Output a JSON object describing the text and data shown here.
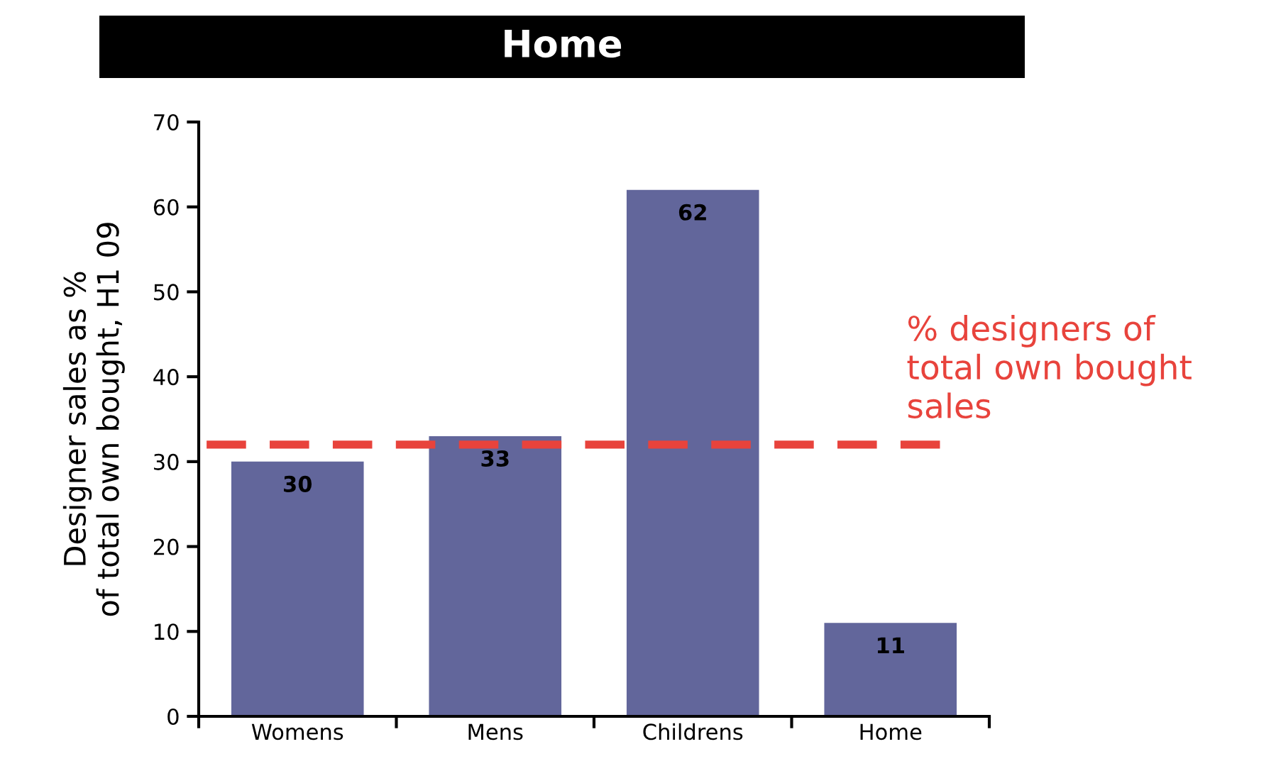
{
  "chart_data": {
    "type": "bar",
    "title": "Home",
    "ylabel": "Designer sales as %\nof total own bought, H1 09",
    "categories": [
      "Womens",
      "Mens",
      "Childrens",
      "Home"
    ],
    "values": [
      30,
      33,
      62,
      11
    ],
    "color": "#62669b",
    "ylim": [
      0,
      70
    ],
    "yticks": [
      0,
      10,
      20,
      30,
      40,
      50,
      60,
      70
    ],
    "data_labels": true,
    "grid": false,
    "legend": false,
    "ref_lines": [
      {
        "axis": "y",
        "value": 32,
        "label": "% designers of\ntotal own bought\nsales",
        "color": "#e8433c",
        "line_style": "dashed"
      }
    ]
  }
}
